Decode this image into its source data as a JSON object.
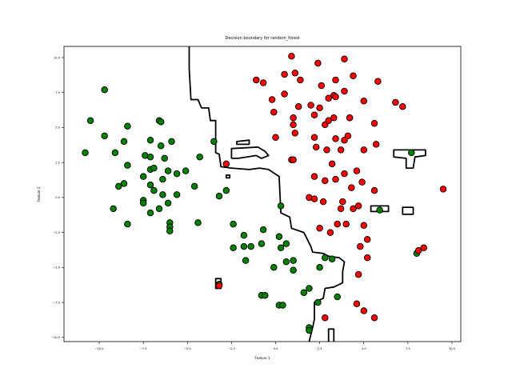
{
  "chart_data": {
    "type": "scatter",
    "title": "Decision boundary for random_forest",
    "xlabel": "Feature 1",
    "ylabel": "Feature 2",
    "xlim": [
      -12.0,
      10.5
    ],
    "ylim": [
      -10.3,
      10.8
    ],
    "xticks": [
      -10.0,
      -7.5,
      -5.0,
      -2.5,
      0.0,
      2.5,
      5.0,
      7.5,
      10.0
    ],
    "yticks": [
      -10.0,
      -7.5,
      -5.0,
      -2.5,
      0.0,
      2.5,
      5.0,
      7.5,
      10.0
    ],
    "xtick_labels": [
      "−10.0",
      "−7.5",
      "−5.0",
      "−2.5",
      "0.0",
      "2.5",
      "5.0",
      "7.5",
      "10.0"
    ],
    "ytick_labels": [
      "−10.0",
      "−7.5",
      "−5.0",
      "−2.5",
      "0.0",
      "2.5",
      "5.0",
      "7.5",
      "10.0"
    ],
    "grid": false,
    "boundary_color": "#000000",
    "series": [
      {
        "color": "#008000",
        "points": [
          [
            -9.7,
            7.7
          ],
          [
            -10.5,
            5.5
          ],
          [
            -9.7,
            4.4
          ],
          [
            -10.8,
            3.2
          ],
          [
            -9.1,
            3.2
          ],
          [
            -8.6,
            4.0
          ],
          [
            -8.4,
            5.1
          ],
          [
            -8.4,
            2.3
          ],
          [
            -8.9,
            0.8
          ],
          [
            -8.6,
            1.0
          ],
          [
            -9.2,
            -0.8
          ],
          [
            -8.4,
            -1.9
          ],
          [
            -7.5,
            1.5
          ],
          [
            -7.5,
            -0.2
          ],
          [
            -7.5,
            -0.4
          ],
          [
            -7.4,
            3.0
          ],
          [
            -7.1,
            4.1
          ],
          [
            -7.1,
            2.9
          ],
          [
            -7.1,
            2.0
          ],
          [
            -6.9,
            2.1
          ],
          [
            -7.1,
            0.9
          ],
          [
            -6.9,
            0.5
          ],
          [
            -7.1,
            -1.1
          ],
          [
            -6.6,
            5.5
          ],
          [
            -6.5,
            5.4
          ],
          [
            -6.5,
            3.7
          ],
          [
            -6.3,
            2.8
          ],
          [
            -6.4,
            1.3
          ],
          [
            -6.4,
            0.2
          ],
          [
            -6.1,
            1.9
          ],
          [
            -6.1,
            -0.4
          ],
          [
            -6.6,
            -0.8
          ],
          [
            -6.0,
            -1.8
          ],
          [
            -6.0,
            -2.1
          ],
          [
            -6.0,
            -2.4
          ],
          [
            -5.9,
            4.0
          ],
          [
            -5.6,
            1.7
          ],
          [
            -5.6,
            0.2
          ],
          [
            -5.1,
            1.9
          ],
          [
            -4.6,
            0.8
          ],
          [
            -4.4,
            -1.8
          ],
          [
            -4.3,
            2.9
          ],
          [
            -3.5,
            4.0
          ],
          [
            -3.2,
            0.1
          ],
          [
            -2.8,
            0.5
          ],
          [
            -2.4,
            -1.9
          ],
          [
            -2.4,
            -3.6
          ],
          [
            -1.8,
            -2.7
          ],
          [
            -1.8,
            -3.5
          ],
          [
            -1.7,
            -4.5
          ],
          [
            -1.4,
            -3.5
          ],
          [
            -0.7,
            -2.3
          ],
          [
            -0.8,
            -3.3
          ],
          [
            -0.8,
            -7.0
          ],
          [
            -0.6,
            -7.0
          ],
          [
            -0.1,
            -5.0
          ],
          [
            0.2,
            -2.8
          ],
          [
            0.3,
            -3.6
          ],
          [
            0.2,
            -7.7
          ],
          [
            0.4,
            -7.7
          ],
          [
            0.6,
            -3.3
          ],
          [
            0.6,
            -4.6
          ],
          [
            1.0,
            -4.5
          ],
          [
            1.0,
            -5.2
          ],
          [
            0.3,
            -0.6
          ],
          [
            1.6,
            -6.8
          ],
          [
            1.9,
            -6.5
          ],
          [
            1.9,
            -9.3
          ],
          [
            1.9,
            -9.5
          ],
          [
            2.4,
            -7.5
          ],
          [
            2.5,
            -5.0
          ],
          [
            2.8,
            -4.3
          ],
          [
            3.2,
            -4.4
          ],
          [
            3.5,
            -7.1
          ],
          [
            5.9,
            -0.9
          ],
          [
            7.7,
            3.2
          ],
          [
            8.0,
            -4.0
          ],
          [
            -3.2,
            -6.2
          ]
        ]
      },
      {
        "color": "#ff0000",
        "points": [
          [
            0.9,
            10.1
          ],
          [
            2.4,
            9.6
          ],
          [
            3.9,
            9.9
          ],
          [
            -1.1,
            8.4
          ],
          [
            -0.7,
            8.2
          ],
          [
            0.5,
            8.8
          ],
          [
            1.1,
            8.9
          ],
          [
            1.4,
            8.4
          ],
          [
            2.6,
            8.0
          ],
          [
            3.4,
            8.4
          ],
          [
            4.4,
            8.7
          ],
          [
            5.8,
            8.3
          ],
          [
            3.9,
            7.6
          ],
          [
            3.0,
            7.1
          ],
          [
            3.3,
            7.3
          ],
          [
            3.4,
            7.2
          ],
          [
            0.5,
            7.4
          ],
          [
            -0.2,
            7.0
          ],
          [
            1.3,
            6.5
          ],
          [
            2.0,
            6.6
          ],
          [
            2.5,
            6.4
          ],
          [
            5.0,
            6.9
          ],
          [
            6.8,
            6.8
          ],
          [
            7.2,
            6.5
          ],
          [
            -0.1,
            6.1
          ],
          [
            1.0,
            5.7
          ],
          [
            1.0,
            5.2
          ],
          [
            1.1,
            4.6
          ],
          [
            2.2,
            5.9
          ],
          [
            2.8,
            5.2
          ],
          [
            3.0,
            5.5
          ],
          [
            3.3,
            5.7
          ],
          [
            4.2,
            5.7
          ],
          [
            4.2,
            5.7
          ],
          [
            5.6,
            5.3
          ],
          [
            0.0,
            4.3
          ],
          [
            2.2,
            4.3
          ],
          [
            2.3,
            3.6
          ],
          [
            2.9,
            3.4
          ],
          [
            3.4,
            4.2
          ],
          [
            3.7,
            3.4
          ],
          [
            3.9,
            4.1
          ],
          [
            4.1,
            4.4
          ],
          [
            5.0,
            3.4
          ],
          [
            5.7,
            3.8
          ],
          [
            0.9,
            2.7
          ],
          [
            1.0,
            2.7
          ],
          [
            2.2,
            1.5
          ],
          [
            2.8,
            1.2
          ],
          [
            3.2,
            2.4
          ],
          [
            3.4,
            1.3
          ],
          [
            3.9,
            1.7
          ],
          [
            4.6,
            1.9
          ],
          [
            4.3,
            0.7
          ],
          [
            4.9,
            1.1
          ],
          [
            5.6,
            0.5
          ],
          [
            1.9,
            0.0
          ],
          [
            2.2,
            -0.1
          ],
          [
            2.7,
            -0.3
          ],
          [
            3.8,
            -0.3
          ],
          [
            3.7,
            -0.8
          ],
          [
            4.4,
            -0.8
          ],
          [
            4.7,
            -0.6
          ],
          [
            3.5,
            -1.9
          ],
          [
            4.0,
            -1.9
          ],
          [
            2.5,
            -2.2
          ],
          [
            3.1,
            -2.5
          ],
          [
            5.0,
            -2.0
          ],
          [
            4.8,
            -3.5
          ],
          [
            5.2,
            -3.0
          ],
          [
            5.2,
            -4.3
          ],
          [
            4.7,
            -5.5
          ],
          [
            4.6,
            -7.6
          ],
          [
            5.0,
            -8.1
          ],
          [
            5.6,
            -8.6
          ],
          [
            2.8,
            -8.6
          ],
          [
            8.1,
            -3.8
          ],
          [
            8.4,
            -3.6
          ],
          [
            9.5,
            0.6
          ],
          [
            -2.8,
            2.4
          ],
          [
            -3.2,
            -6.3
          ]
        ]
      }
    ]
  }
}
